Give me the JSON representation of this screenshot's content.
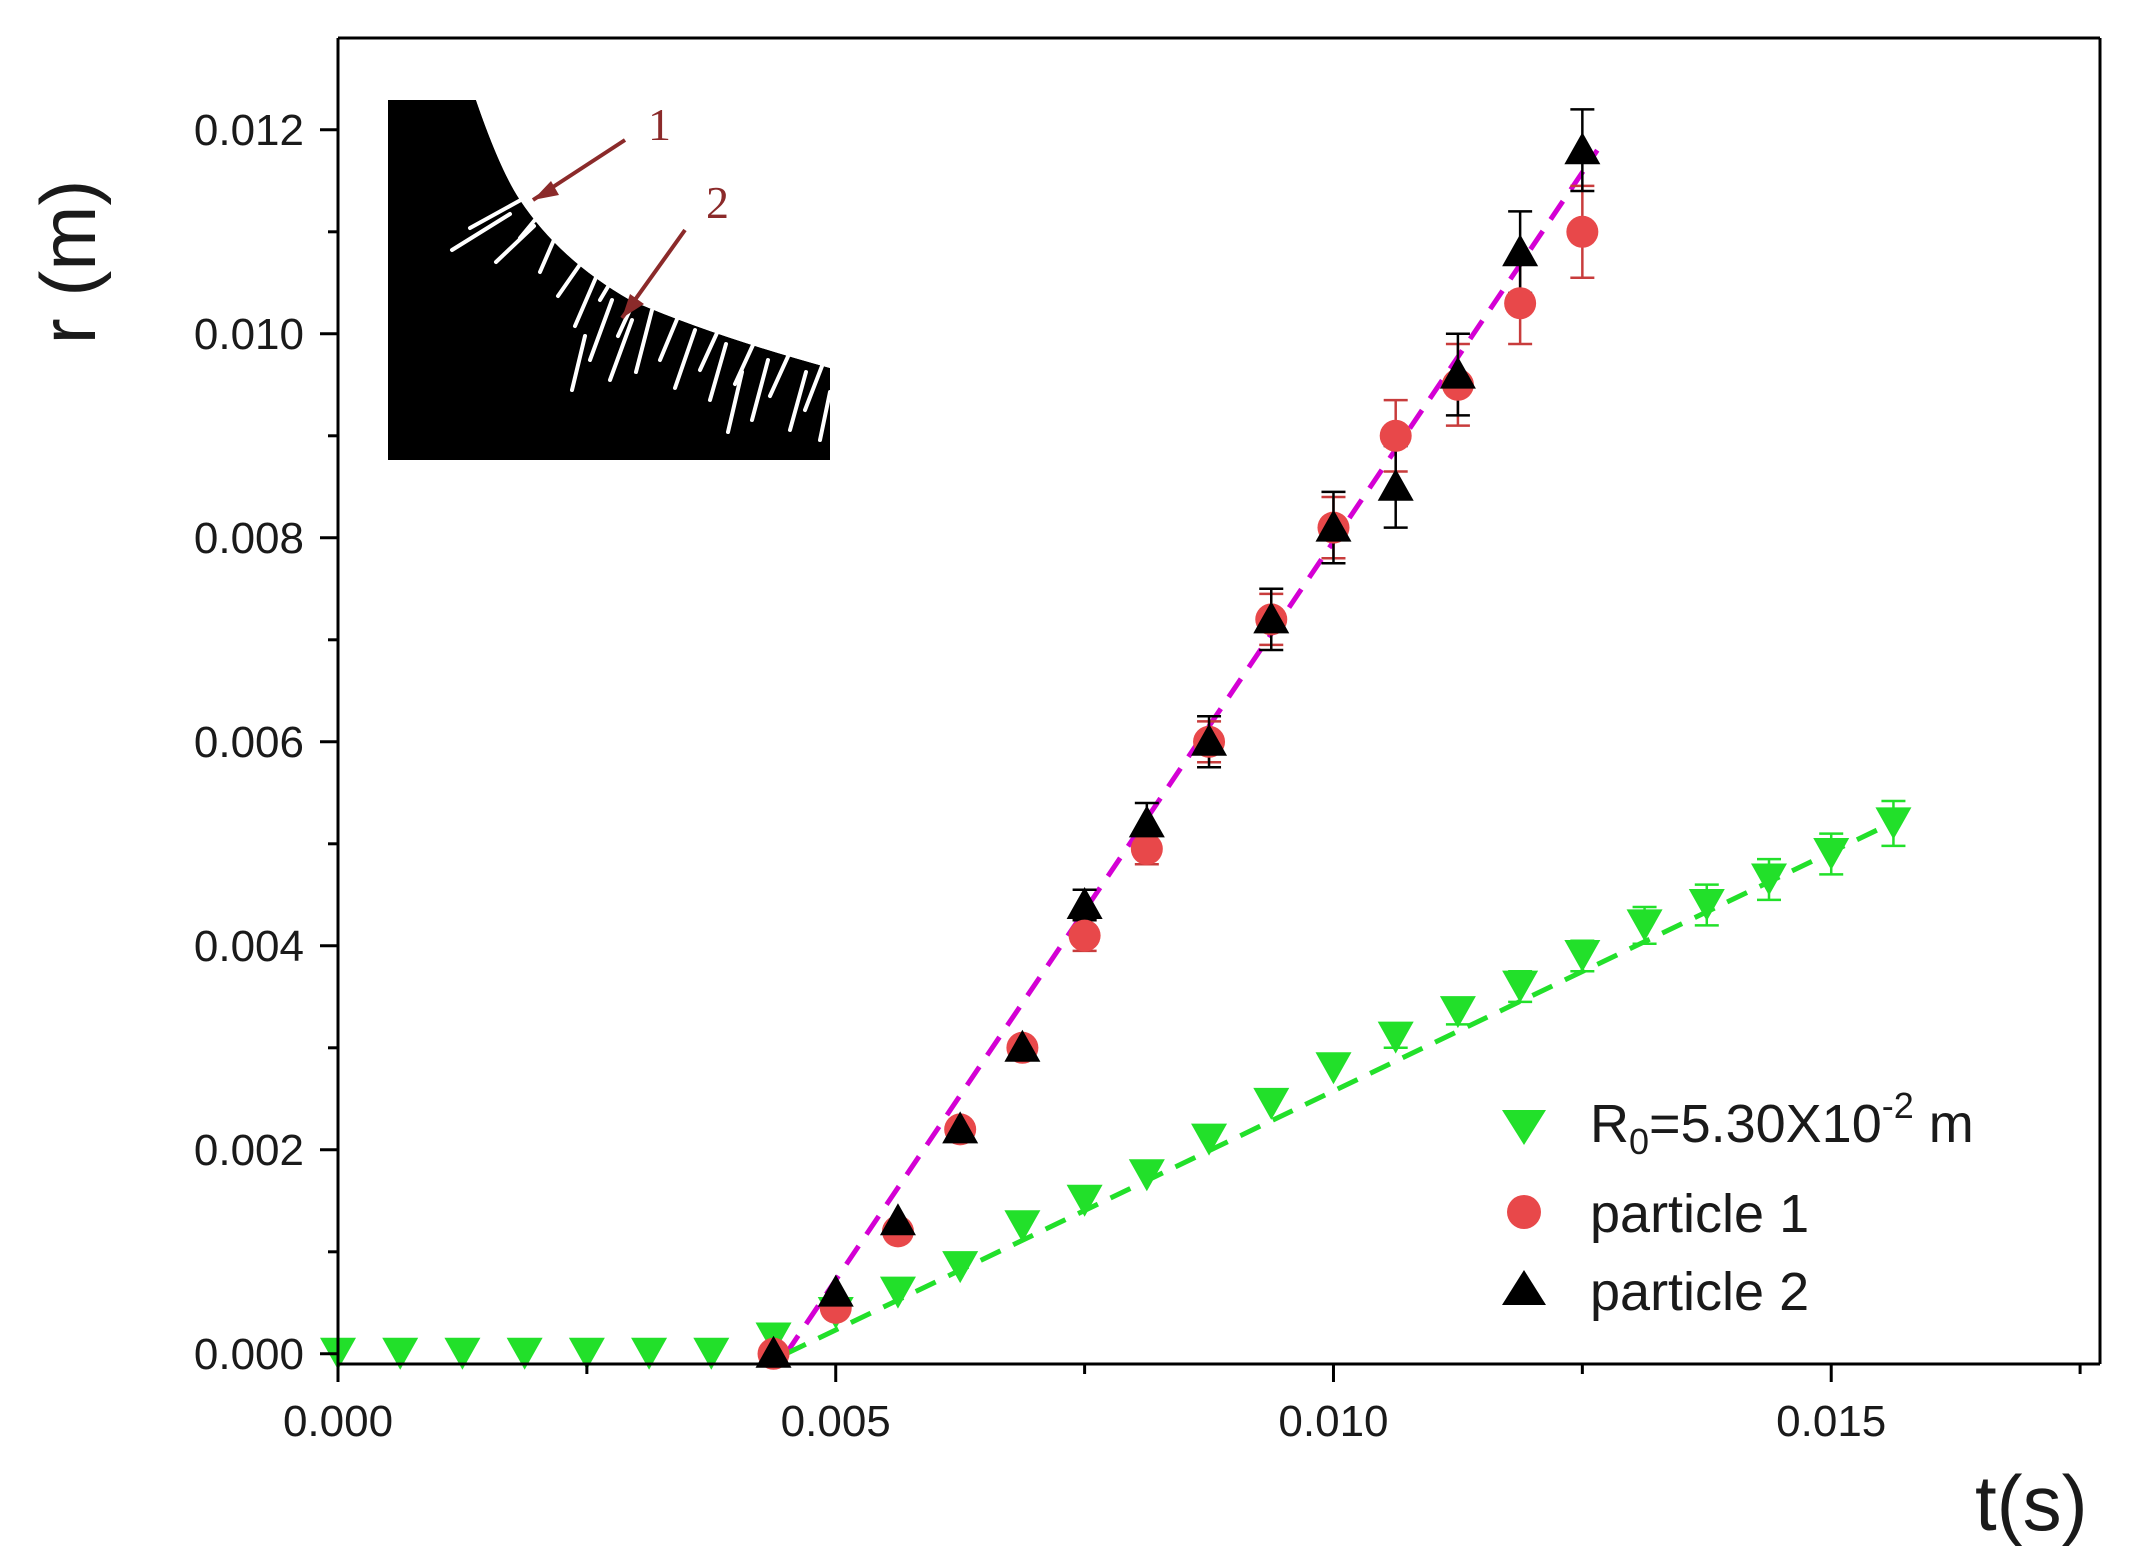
{
  "chart_data": {
    "type": "scatter",
    "title": "",
    "xlabel": "t(s)",
    "ylabel": "r (m)",
    "xlim": [
      0,
      0.0177
    ],
    "ylim": [
      -0.0001,
      0.0129
    ],
    "x_ticks": [
      0.0,
      0.005,
      0.01,
      0.015
    ],
    "x_tick_labels": [
      "0.000",
      "0.005",
      "0.010",
      "0.015"
    ],
    "y_ticks": [
      0.0,
      0.002,
      0.004,
      0.006,
      0.008,
      0.01,
      0.012
    ],
    "y_tick_labels": [
      "0.000",
      "0.002",
      "0.004",
      "0.006",
      "0.008",
      "0.010",
      "0.012"
    ],
    "grid": false,
    "legend_position": "lower-right",
    "legend": {
      "r0_prefix": "R",
      "r0_subscript": "0",
      "r0_mid": "=5.30X10",
      "r0_superscript": "-2",
      "r0_suffix": " m",
      "particle1": "particle 1",
      "particle2": "particle 2"
    },
    "inset_labels": [
      "1",
      "2"
    ],
    "colors": {
      "green": "#22e02a",
      "red": "#e8484a",
      "black": "#000000",
      "magenta_fit": "#d400d4",
      "green_fit": "#22e02a",
      "inset_arrow": "#8b2a2a",
      "red_error": "#c83c3c"
    },
    "series": [
      {
        "name": "R0=5.30X10-2 m",
        "marker": "triangle-down",
        "color": "#22e02a",
        "x": [
          0.0,
          0.000625,
          0.00125,
          0.001875,
          0.0025,
          0.003125,
          0.00375,
          0.004375,
          0.005,
          0.005625,
          0.00625,
          0.006875,
          0.0075,
          0.008125,
          0.00875,
          0.009375,
          0.01,
          0.010625,
          0.01125,
          0.011875,
          0.0125,
          0.013125,
          0.01375,
          0.014375,
          0.015,
          0.015625
        ],
        "y": [
          0.0,
          0.0,
          0.0,
          0.0,
          0.0,
          0.0,
          0.0,
          0.00015,
          0.0004,
          0.0006,
          0.00085,
          0.00125,
          0.0015,
          0.00175,
          0.0021,
          0.00245,
          0.0028,
          0.0031,
          0.00335,
          0.0036,
          0.0039,
          0.0042,
          0.0044,
          0.00465,
          0.0049,
          0.0052
        ],
        "err": [
          0,
          0,
          0,
          0,
          0,
          0,
          0,
          0,
          0,
          0,
          0,
          0,
          0,
          0,
          0,
          0,
          0,
          0.0001,
          0.00012,
          0.00015,
          0.00015,
          0.00018,
          0.0002,
          0.0002,
          0.0002,
          0.00022
        ]
      },
      {
        "name": "particle 1",
        "marker": "circle",
        "color": "#e8484a",
        "x": [
          0.004375,
          0.005,
          0.005625,
          0.00625,
          0.006875,
          0.0075,
          0.008125,
          0.00875,
          0.009375,
          0.01,
          0.010625,
          0.01125,
          0.011875,
          0.0125
        ],
        "y": [
          0.0,
          0.00045,
          0.0012,
          0.0022,
          0.003,
          0.0041,
          0.00495,
          0.006,
          0.0072,
          0.0081,
          0.009,
          0.0095,
          0.0103,
          0.011
        ],
        "err": [
          0,
          0,
          0,
          0,
          0,
          0.00015,
          0.00015,
          0.0002,
          0.00025,
          0.0003,
          0.00035,
          0.0004,
          0.0004,
          0.00045
        ]
      },
      {
        "name": "particle 2",
        "marker": "triangle-up",
        "color": "#000000",
        "x": [
          0.004375,
          0.005,
          0.005625,
          0.00625,
          0.006875,
          0.0075,
          0.008125,
          0.00875,
          0.009375,
          0.01,
          0.010625,
          0.01125,
          0.011875,
          0.0125
        ],
        "y": [
          0.0,
          0.0006,
          0.0013,
          0.0022,
          0.003,
          0.0044,
          0.0052,
          0.006,
          0.0072,
          0.0081,
          0.0085,
          0.0096,
          0.0108,
          0.0118
        ],
        "err": [
          0,
          0,
          0,
          0,
          0,
          0.00015,
          0.0002,
          0.00025,
          0.0003,
          0.00035,
          0.0004,
          0.0004,
          0.0004,
          0.0004
        ]
      }
    ],
    "fit_lines": [
      {
        "name": "particle fit",
        "color": "#d400d4",
        "x": [
          0.0045,
          0.01265
        ],
        "y": [
          0.0,
          0.0118
        ]
      },
      {
        "name": "R0 fit",
        "color": "#22e02a",
        "x": [
          0.0045,
          0.0156
        ],
        "y": [
          0.0,
          0.0052
        ]
      }
    ]
  }
}
